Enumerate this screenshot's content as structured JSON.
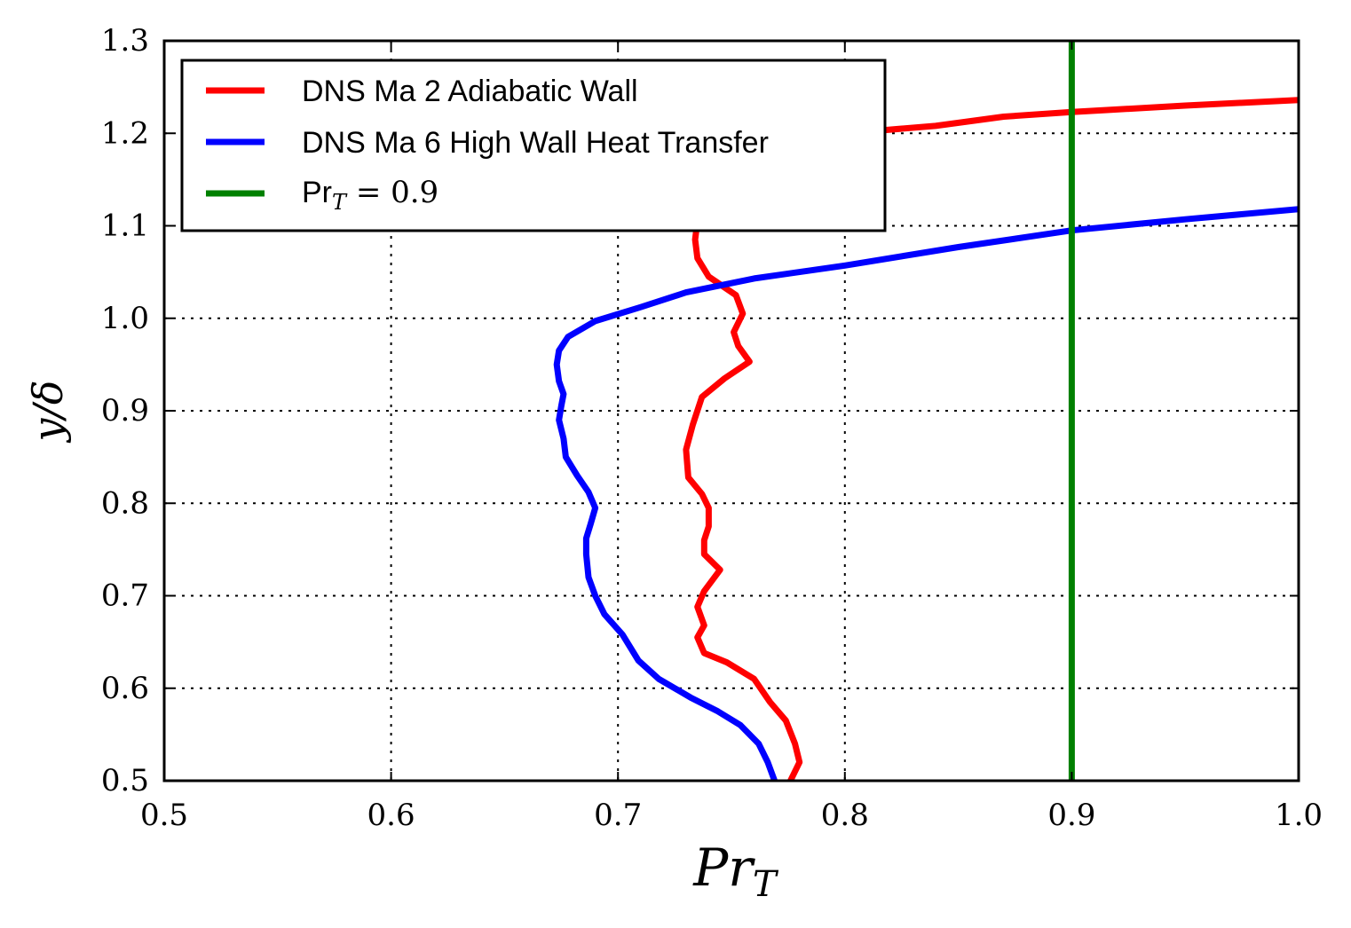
{
  "chart_data": {
    "type": "line",
    "title": "",
    "xlabel": "Pr_T",
    "ylabel": "y/δ",
    "xlim": [
      0.5,
      1.0
    ],
    "ylim": [
      0.5,
      1.3
    ],
    "x_ticks": [
      "0.5",
      "0.6",
      "0.7",
      "0.8",
      "0.9",
      "1.0"
    ],
    "y_ticks": [
      "0.5",
      "0.6",
      "0.7",
      "0.8",
      "0.9",
      "1.0",
      "1.1",
      "1.2",
      "1.3"
    ],
    "grid": true,
    "legend_position": "top-left",
    "series": [
      {
        "name": "DNS Ma 2 Adiabatic Wall",
        "color": "#ff0000",
        "points": [
          [
            0.776,
            0.5
          ],
          [
            0.78,
            0.52
          ],
          [
            0.778,
            0.54
          ],
          [
            0.774,
            0.565
          ],
          [
            0.767,
            0.585
          ],
          [
            0.76,
            0.61
          ],
          [
            0.748,
            0.628
          ],
          [
            0.738,
            0.638
          ],
          [
            0.735,
            0.655
          ],
          [
            0.738,
            0.668
          ],
          [
            0.735,
            0.688
          ],
          [
            0.738,
            0.705
          ],
          [
            0.745,
            0.728
          ],
          [
            0.738,
            0.745
          ],
          [
            0.738,
            0.76
          ],
          [
            0.74,
            0.775
          ],
          [
            0.74,
            0.795
          ],
          [
            0.737,
            0.81
          ],
          [
            0.731,
            0.828
          ],
          [
            0.73,
            0.858
          ],
          [
            0.733,
            0.885
          ],
          [
            0.737,
            0.915
          ],
          [
            0.747,
            0.935
          ],
          [
            0.758,
            0.953
          ],
          [
            0.753,
            0.97
          ],
          [
            0.751,
            0.985
          ],
          [
            0.755,
            1.005
          ],
          [
            0.752,
            1.025
          ],
          [
            0.74,
            1.045
          ],
          [
            0.735,
            1.065
          ],
          [
            0.734,
            1.085
          ],
          [
            0.735,
            1.105
          ],
          [
            0.736,
            1.13
          ],
          [
            0.752,
            1.165
          ],
          [
            0.775,
            1.19
          ],
          [
            0.81,
            1.202
          ],
          [
            0.84,
            1.208
          ],
          [
            0.87,
            1.218
          ],
          [
            0.9,
            1.223
          ],
          [
            0.95,
            1.23
          ],
          [
            1.0,
            1.236
          ]
        ]
      },
      {
        "name": "DNS Ma 6 High Wall Heat Transfer",
        "color": "#0000ff",
        "points": [
          [
            0.769,
            0.5
          ],
          [
            0.766,
            0.52
          ],
          [
            0.762,
            0.54
          ],
          [
            0.754,
            0.56
          ],
          [
            0.744,
            0.575
          ],
          [
            0.732,
            0.59
          ],
          [
            0.718,
            0.61
          ],
          [
            0.709,
            0.63
          ],
          [
            0.702,
            0.658
          ],
          [
            0.694,
            0.68
          ],
          [
            0.69,
            0.7
          ],
          [
            0.687,
            0.72
          ],
          [
            0.686,
            0.745
          ],
          [
            0.686,
            0.762
          ],
          [
            0.688,
            0.778
          ],
          [
            0.69,
            0.795
          ],
          [
            0.687,
            0.812
          ],
          [
            0.682,
            0.83
          ],
          [
            0.677,
            0.85
          ],
          [
            0.676,
            0.87
          ],
          [
            0.674,
            0.89
          ],
          [
            0.675,
            0.905
          ],
          [
            0.676,
            0.918
          ],
          [
            0.674,
            0.932
          ],
          [
            0.673,
            0.95
          ],
          [
            0.674,
            0.965
          ],
          [
            0.678,
            0.98
          ],
          [
            0.69,
            0.997
          ],
          [
            0.71,
            1.012
          ],
          [
            0.73,
            1.028
          ],
          [
            0.76,
            1.043
          ],
          [
            0.8,
            1.057
          ],
          [
            0.85,
            1.077
          ],
          [
            0.9,
            1.095
          ],
          [
            0.95,
            1.107
          ],
          [
            1.0,
            1.118
          ]
        ]
      },
      {
        "name": "Pr_T = 0.9",
        "color": "#008000",
        "points": [
          [
            0.9,
            0.5
          ],
          [
            0.9,
            1.3
          ]
        ]
      }
    ]
  }
}
